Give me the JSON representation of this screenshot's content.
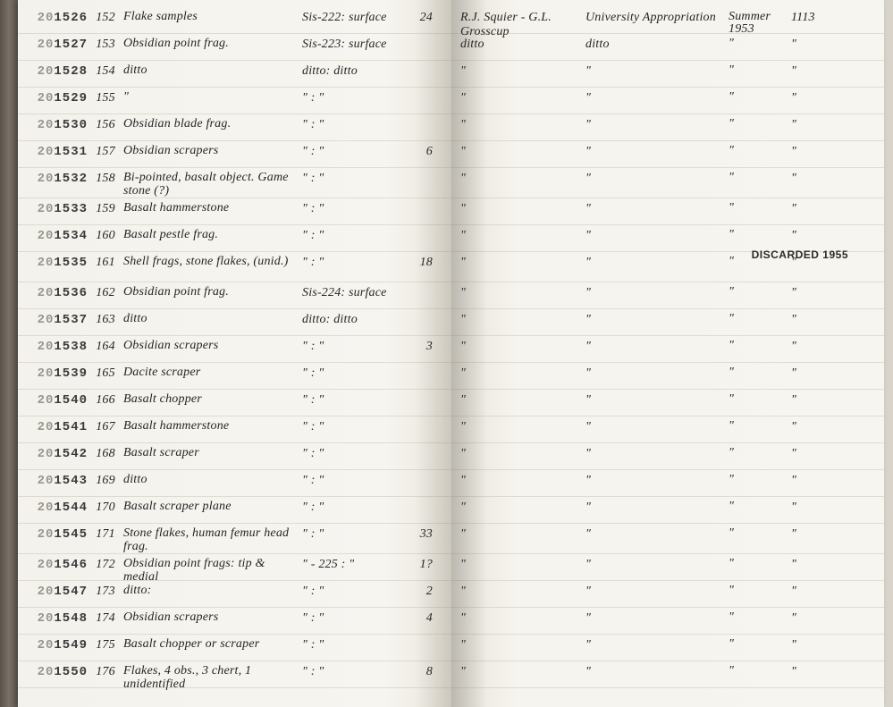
{
  "catalog_prefix_faded": "20",
  "catalog_prefix_strong": "1",
  "discarded_stamp": "DISCARDED 1955",
  "right_page_first": {
    "collector": "R.J. Squier - G.L. Grosscup",
    "fund": "University Appropriation",
    "season": "Summer 1953",
    "ref": "1113"
  },
  "rows": [
    {
      "cat": "526",
      "n": "152",
      "desc": "Flake samples",
      "loc": "Sis-222: surface",
      "qty": "24"
    },
    {
      "cat": "527",
      "n": "153",
      "desc": "Obsidian point frag.",
      "loc": "Sis-223: surface",
      "qty": ""
    },
    {
      "cat": "528",
      "n": "154",
      "desc": "ditto",
      "loc": "ditto: ditto",
      "qty": ""
    },
    {
      "cat": "529",
      "n": "155",
      "desc": "\"",
      "loc": "\" : \"",
      "qty": ""
    },
    {
      "cat": "530",
      "n": "156",
      "desc": "Obsidian blade frag.",
      "loc": "\" : \"",
      "qty": ""
    },
    {
      "cat": "531",
      "n": "157",
      "desc": "Obsidian scrapers",
      "loc": "\" : \"",
      "qty": "6"
    },
    {
      "cat": "532",
      "n": "158",
      "desc": "Bi-pointed, basalt object. Game stone (?)",
      "loc": "\" : \"",
      "qty": ""
    },
    {
      "cat": "533",
      "n": "159",
      "desc": "Basalt hammerstone",
      "loc": "\" : \"",
      "qty": ""
    },
    {
      "cat": "534",
      "n": "160",
      "desc": "Basalt pestle frag.",
      "loc": "\" : \"",
      "qty": ""
    },
    {
      "cat": "535",
      "n": "161",
      "desc": "Shell frags, stone flakes, (unid.)",
      "loc": "\" : \"",
      "qty": "18"
    },
    {
      "cat": "536",
      "n": "162",
      "desc": "Obsidian point frag.",
      "loc": "Sis-224: surface",
      "qty": ""
    },
    {
      "cat": "537",
      "n": "163",
      "desc": "ditto",
      "loc": "ditto: ditto",
      "qty": ""
    },
    {
      "cat": "538",
      "n": "164",
      "desc": "Obsidian scrapers",
      "loc": "\" : \"",
      "qty": "3"
    },
    {
      "cat": "539",
      "n": "165",
      "desc": "Dacite scraper",
      "loc": "\" : \"",
      "qty": ""
    },
    {
      "cat": "540",
      "n": "166",
      "desc": "Basalt chopper",
      "loc": "\" : \"",
      "qty": ""
    },
    {
      "cat": "541",
      "n": "167",
      "desc": "Basalt hammerstone",
      "loc": "\" : \"",
      "qty": ""
    },
    {
      "cat": "542",
      "n": "168",
      "desc": "Basalt scraper",
      "loc": "\" : \"",
      "qty": ""
    },
    {
      "cat": "543",
      "n": "169",
      "desc": "ditto",
      "loc": "\" : \"",
      "qty": ""
    },
    {
      "cat": "544",
      "n": "170",
      "desc": "Basalt scraper plane",
      "loc": "\" : \"",
      "qty": ""
    },
    {
      "cat": "545",
      "n": "171",
      "desc": "Stone flakes, human femur head frag.",
      "loc": "\" : \"",
      "qty": "33"
    },
    {
      "cat": "546",
      "n": "172",
      "desc": "Obsidian point frags: tip & medial",
      "loc": "\" - 225 : \"",
      "qty": "1?"
    },
    {
      "cat": "547",
      "n": "173",
      "desc": "ditto:",
      "loc": "\" : \"",
      "qty": "2"
    },
    {
      "cat": "548",
      "n": "174",
      "desc": "Obsidian scrapers",
      "loc": "\" : \"",
      "qty": "4"
    },
    {
      "cat": "549",
      "n": "175",
      "desc": "Basalt chopper or scraper",
      "loc": "\" : \"",
      "qty": ""
    },
    {
      "cat": "550",
      "n": "176",
      "desc": "Flakes, 4 obs., 3 chert, 1 unidentified",
      "loc": "\" : \"",
      "qty": "8"
    }
  ],
  "ditto_mark": "\"",
  "ditto_word": "ditto"
}
